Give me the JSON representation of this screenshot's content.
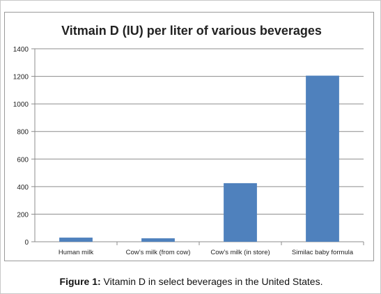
{
  "chart_data": {
    "type": "bar",
    "title": "Vitmain D (IU) per liter of various beverages",
    "categories": [
      "Human milk",
      "Cow’s milk (from cow)",
      "Cow’s milk (in store)",
      "Similac baby formula"
    ],
    "values": [
      30,
      25,
      425,
      1205
    ],
    "ylim": [
      0,
      1400
    ],
    "yticks": [
      0,
      200,
      400,
      600,
      800,
      1000,
      1200,
      1400
    ],
    "grid": true,
    "bar_color": "#4f81bd"
  },
  "caption": {
    "label": "Figure 1:",
    "text": " Vitamin D in select beverages in the United States."
  }
}
